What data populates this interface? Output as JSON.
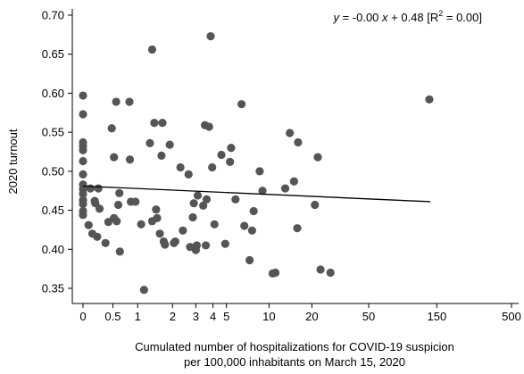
{
  "chart_data": {
    "type": "scatter",
    "xlabel": [
      "Cumulated number of hospitalizations for COVID-19 suspicion",
      "per 100,000 inhabitants on March 15, 2020"
    ],
    "ylabel": "2020 turnout",
    "x_scale": "inverse-hyperbolic-sine",
    "x_ticks": [
      0,
      0.5,
      1,
      2,
      3,
      4,
      5,
      10,
      20,
      50,
      150,
      500
    ],
    "x_tick_labels": [
      "0",
      "0.5",
      "1",
      "2",
      "3",
      "4",
      "5",
      "10",
      "20",
      "50",
      "150",
      "500"
    ],
    "y_ticks": [
      0.35,
      0.4,
      0.45,
      0.5,
      0.55,
      0.6,
      0.65,
      0.7
    ],
    "y_tick_labels": [
      "0.35",
      "0.40",
      "0.45",
      "0.50",
      "0.55",
      "0.60",
      "0.65",
      "0.70"
    ],
    "ylim": [
      0.33,
      0.715
    ],
    "xlim": [
      0,
      500
    ],
    "grid": false,
    "fit_line": {
      "slope": -0.0,
      "intercept": 0.48,
      "x_range": [
        0,
        135
      ],
      "y_start": 0.481,
      "y_end": 0.461
    },
    "annotation": {
      "prefix_y": "y",
      "mid1": " = -0.00 ",
      "x": "x",
      "mid2": " + 0.48 [R",
      "sup": "2",
      "suffix": " = 0.00]"
    },
    "marker_color": "#555555",
    "line_color": "#000000",
    "points": [
      {
        "x": 0,
        "y": 0.597
      },
      {
        "x": 0,
        "y": 0.573
      },
      {
        "x": 0,
        "y": 0.537
      },
      {
        "x": 0,
        "y": 0.532
      },
      {
        "x": 0,
        "y": 0.527
      },
      {
        "x": 0,
        "y": 0.513
      },
      {
        "x": 0,
        "y": 0.496
      },
      {
        "x": 0,
        "y": 0.483
      },
      {
        "x": 0,
        "y": 0.477
      },
      {
        "x": 0,
        "y": 0.471
      },
      {
        "x": 0,
        "y": 0.463
      },
      {
        "x": 0,
        "y": 0.458
      },
      {
        "x": 0,
        "y": 0.449
      },
      {
        "x": 0,
        "y": 0.444
      },
      {
        "x": 0.09,
        "y": 0.431
      },
      {
        "x": 0.12,
        "y": 0.478
      },
      {
        "x": 0.15,
        "y": 0.42
      },
      {
        "x": 0.19,
        "y": 0.462
      },
      {
        "x": 0.2,
        "y": 0.459
      },
      {
        "x": 0.23,
        "y": 0.416
      },
      {
        "x": 0.25,
        "y": 0.478
      },
      {
        "x": 0.27,
        "y": 0.452
      },
      {
        "x": 0.37,
        "y": 0.408
      },
      {
        "x": 0.42,
        "y": 0.435
      },
      {
        "x": 0.48,
        "y": 0.555
      },
      {
        "x": 0.52,
        "y": 0.518
      },
      {
        "x": 0.52,
        "y": 0.44
      },
      {
        "x": 0.56,
        "y": 0.589
      },
      {
        "x": 0.57,
        "y": 0.436
      },
      {
        "x": 0.6,
        "y": 0.457
      },
      {
        "x": 0.62,
        "y": 0.472
      },
      {
        "x": 0.63,
        "y": 0.397
      },
      {
        "x": 0.82,
        "y": 0.589
      },
      {
        "x": 0.83,
        "y": 0.515
      },
      {
        "x": 0.85,
        "y": 0.461
      },
      {
        "x": 0.95,
        "y": 0.461
      },
      {
        "x": 1.08,
        "y": 0.432
      },
      {
        "x": 1.15,
        "y": 0.348
      },
      {
        "x": 1.3,
        "y": 0.536
      },
      {
        "x": 1.36,
        "y": 0.656
      },
      {
        "x": 1.36,
        "y": 0.436
      },
      {
        "x": 1.42,
        "y": 0.562
      },
      {
        "x": 1.47,
        "y": 0.451
      },
      {
        "x": 1.5,
        "y": 0.44
      },
      {
        "x": 1.58,
        "y": 0.42
      },
      {
        "x": 1.63,
        "y": 0.52
      },
      {
        "x": 1.66,
        "y": 0.562
      },
      {
        "x": 1.7,
        "y": 0.41
      },
      {
        "x": 1.74,
        "y": 0.406
      },
      {
        "x": 1.9,
        "y": 0.534
      },
      {
        "x": 2.05,
        "y": 0.408
      },
      {
        "x": 2.1,
        "y": 0.41
      },
      {
        "x": 2.3,
        "y": 0.505
      },
      {
        "x": 2.4,
        "y": 0.424
      },
      {
        "x": 2.65,
        "y": 0.496
      },
      {
        "x": 2.72,
        "y": 0.403
      },
      {
        "x": 2.85,
        "y": 0.441
      },
      {
        "x": 2.9,
        "y": 0.459
      },
      {
        "x": 3.0,
        "y": 0.399
      },
      {
        "x": 3.05,
        "y": 0.405
      },
      {
        "x": 3.1,
        "y": 0.469
      },
      {
        "x": 3.4,
        "y": 0.456
      },
      {
        "x": 3.5,
        "y": 0.559
      },
      {
        "x": 3.55,
        "y": 0.405
      },
      {
        "x": 3.6,
        "y": 0.464
      },
      {
        "x": 3.75,
        "y": 0.557
      },
      {
        "x": 3.85,
        "y": 0.673
      },
      {
        "x": 3.95,
        "y": 0.505
      },
      {
        "x": 4.1,
        "y": 0.432
      },
      {
        "x": 4.6,
        "y": 0.521
      },
      {
        "x": 4.9,
        "y": 0.407
      },
      {
        "x": 5.3,
        "y": 0.512
      },
      {
        "x": 5.4,
        "y": 0.53
      },
      {
        "x": 5.8,
        "y": 0.464
      },
      {
        "x": 6.4,
        "y": 0.586
      },
      {
        "x": 6.7,
        "y": 0.43
      },
      {
        "x": 7.3,
        "y": 0.386
      },
      {
        "x": 7.6,
        "y": 0.424
      },
      {
        "x": 7.8,
        "y": 0.449
      },
      {
        "x": 8.6,
        "y": 0.5
      },
      {
        "x": 9.0,
        "y": 0.475
      },
      {
        "x": 10.6,
        "y": 0.369
      },
      {
        "x": 11.1,
        "y": 0.37
      },
      {
        "x": 13.0,
        "y": 0.478
      },
      {
        "x": 14.0,
        "y": 0.549
      },
      {
        "x": 15.0,
        "y": 0.487
      },
      {
        "x": 15.8,
        "y": 0.427
      },
      {
        "x": 16.0,
        "y": 0.537
      },
      {
        "x": 21.0,
        "y": 0.457
      },
      {
        "x": 22.0,
        "y": 0.518
      },
      {
        "x": 23.0,
        "y": 0.374
      },
      {
        "x": 27.0,
        "y": 0.37
      },
      {
        "x": 133,
        "y": 0.592
      }
    ]
  }
}
